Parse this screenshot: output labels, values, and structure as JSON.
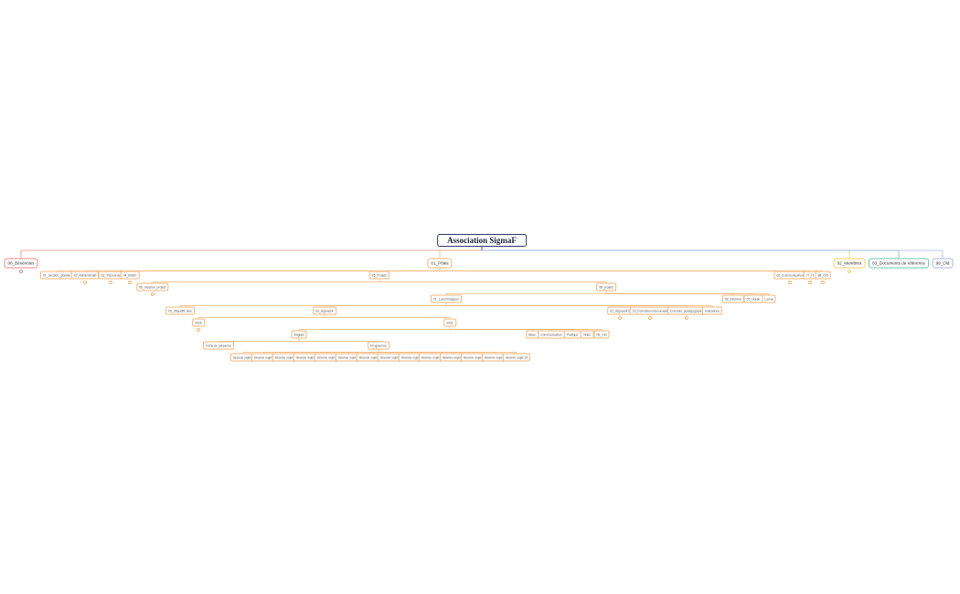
{
  "colors": {
    "root": "#2f3a6b",
    "benevoles": "#ef8a8a",
    "poles": "#f7b77a",
    "membres": "#f2d36b",
    "docs": "#6cc9a8",
    "old": "#aab4f0"
  },
  "root": {
    "id": "root",
    "label": "Association SigmaF",
    "children": [
      {
        "id": "benevoles",
        "label": "00_Bénévoles",
        "branch": "benevoles",
        "collapsed": true
      },
      {
        "id": "poles",
        "label": "01_Pôles",
        "branch": "poles",
        "children": [
          {
            "id": "gestion_globale",
            "label": "01_Gestion_globale"
          },
          {
            "id": "administratif",
            "label": "02_Administratif",
            "collapsed": true
          },
          {
            "id": "tresorerie",
            "label": "03_Trésorerie",
            "collapsed": true
          },
          {
            "id": "bdef",
            "label": "04_BDEF",
            "collapsed": true
          },
          {
            "id": "projets",
            "label": "05_Projets",
            "children": [
              {
                "id": "gestion_projets",
                "label": "06_Gestion_projets",
                "collapsed": true
              },
              {
                "id": "projets2",
                "label": "08_projets",
                "children": [
                  {
                    "id": "lunchmagique",
                    "label": "01_Lunchmagique",
                    "children": [
                      {
                        "id": "objectif",
                        "label": "05_ObjectifL.Box"
                      },
                      {
                        "id": "sigmasf",
                        "label": "03_SigmaSF",
                        "children": [
                          {
                            "id": "y2020",
                            "label": "2020",
                            "collapsed": true
                          },
                          {
                            "id": "y2021",
                            "label": "2021",
                            "children": [
                              {
                                "id": "anglais",
                                "label": "Anglais",
                                "children": [
                                  {
                                    "id": "fiche",
                                    "label": "Fiche de présence"
                                  },
                                  {
                                    "id": "programme",
                                    "label": "Programme",
                                    "children": [
                                      {
                                        "id": "s1",
                                        "label": "Séance sujet 1"
                                      },
                                      {
                                        "id": "s2",
                                        "label": "Séance sujet 2"
                                      },
                                      {
                                        "id": "s3",
                                        "label": "Séance sujet 3"
                                      },
                                      {
                                        "id": "s4",
                                        "label": "Séance sujet 4"
                                      },
                                      {
                                        "id": "s5",
                                        "label": "Séance sujet 5"
                                      },
                                      {
                                        "id": "s6",
                                        "label": "Séance sujet 6"
                                      },
                                      {
                                        "id": "s7",
                                        "label": "Séance sujet 7"
                                      },
                                      {
                                        "id": "s8",
                                        "label": "Séance sujet 8"
                                      },
                                      {
                                        "id": "s9",
                                        "label": "Séance sujet 9"
                                      },
                                      {
                                        "id": "s10",
                                        "label": "Séance sujet 10"
                                      },
                                      {
                                        "id": "s11",
                                        "label": "Séance sujet 11"
                                      },
                                      {
                                        "id": "s12",
                                        "label": "Séance sujet 12"
                                      },
                                      {
                                        "id": "s13",
                                        "label": "Séance sujet 13"
                                      },
                                      {
                                        "id": "s14",
                                        "label": "Séance sujet 14"
                                      }
                                    ]
                                  }
                                ]
                              },
                              {
                                "id": "bilan",
                                "label": "Bilan"
                              },
                              {
                                "id": "communication2",
                                "label": "Communication"
                              },
                              {
                                "id": "pratique",
                                "label": "Pratique"
                              },
                              {
                                "id": "video",
                                "label": "Vidéo"
                              },
                              {
                                "id": "old2",
                                "label": "06_Old"
                              }
                            ]
                          }
                        ]
                      },
                      {
                        "id": "sigmasf2",
                        "label": "02_SigmaSF2",
                        "collapsed": true
                      },
                      {
                        "id": "formation",
                        "label": "03_Formation intervenant",
                        "collapsed": true
                      },
                      {
                        "id": "conseils",
                        "label": "Conseils_pédagogiques",
                        "collapsed": true
                      },
                      {
                        "id": "indications",
                        "label": "Indications"
                      }
                    ]
                  },
                  {
                    "id": "informer",
                    "label": "08_Informer"
                  },
                  {
                    "id": "horair",
                    "label": "09_Horair"
                  },
                  {
                    "id": "lumai",
                    "label": "Lumai"
                  }
                ]
              }
            ]
          },
          {
            "id": "communication",
            "label": "06_Communication",
            "collapsed": true
          },
          {
            "id": "it",
            "label": "77_IT",
            "collapsed": true
          },
          {
            "id": "poles_old",
            "label": "88_Old",
            "collapsed": true
          }
        ]
      },
      {
        "id": "membres",
        "label": "02_Membres",
        "branch": "membres",
        "collapsed": true
      },
      {
        "id": "docs",
        "label": "03_Documents de référence",
        "branch": "docs"
      },
      {
        "id": "old",
        "label": "99_Old",
        "branch": "old"
      }
    ]
  }
}
